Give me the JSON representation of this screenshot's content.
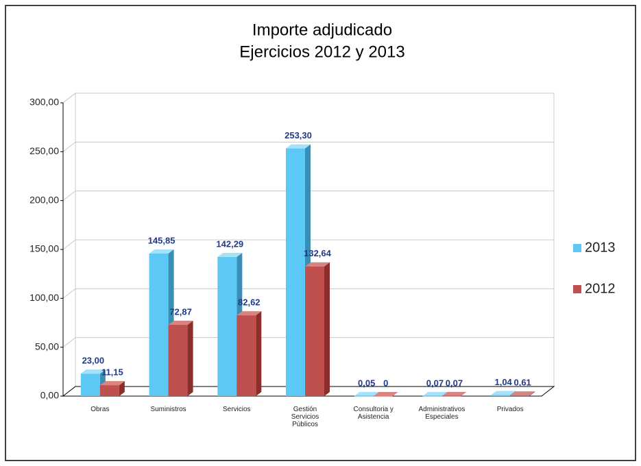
{
  "chart_data": {
    "type": "bar3d",
    "title": "Importe adjudicado",
    "subtitle": "Ejercicios 2012 y 2013",
    "categories": [
      "Obras",
      "Suministros",
      "Servicios",
      "Gestión Servicios Públicos",
      "Consultoria y Asistencia",
      "Administrativos Especiales",
      "Privados"
    ],
    "series": [
      {
        "name": "2013",
        "color": "#5bc8f5",
        "side": "#3a8db3",
        "top": "#a3e2fb",
        "values": [
          23.0,
          145.85,
          142.29,
          253.3,
          0.05,
          0.07,
          1.04
        ],
        "value_labels": [
          "23,00",
          "145,85",
          "142,29",
          "253,30",
          "0,05",
          "0,07",
          "1,04"
        ]
      },
      {
        "name": "2012",
        "color": "#c0504d",
        "side": "#8a2f2c",
        "top": "#d98481",
        "values": [
          11.15,
          72.87,
          82.62,
          132.64,
          0,
          0.07,
          0.61
        ],
        "value_labels": [
          "11,15",
          "72,87",
          "82,62",
          "132,64",
          "0",
          "0,07",
          "0,61"
        ]
      }
    ],
    "ylim": [
      0,
      300
    ],
    "yticks": [
      {
        "value": 0,
        "label": "0,00"
      },
      {
        "value": 50,
        "label": "50,00"
      },
      {
        "value": 100,
        "label": "100,00"
      },
      {
        "value": 150,
        "label": "150,00"
      },
      {
        "value": 200,
        "label": "200,00"
      },
      {
        "value": 250,
        "label": "250,00"
      },
      {
        "value": 300,
        "label": "300,00"
      }
    ],
    "grid": true,
    "legend": "right"
  }
}
